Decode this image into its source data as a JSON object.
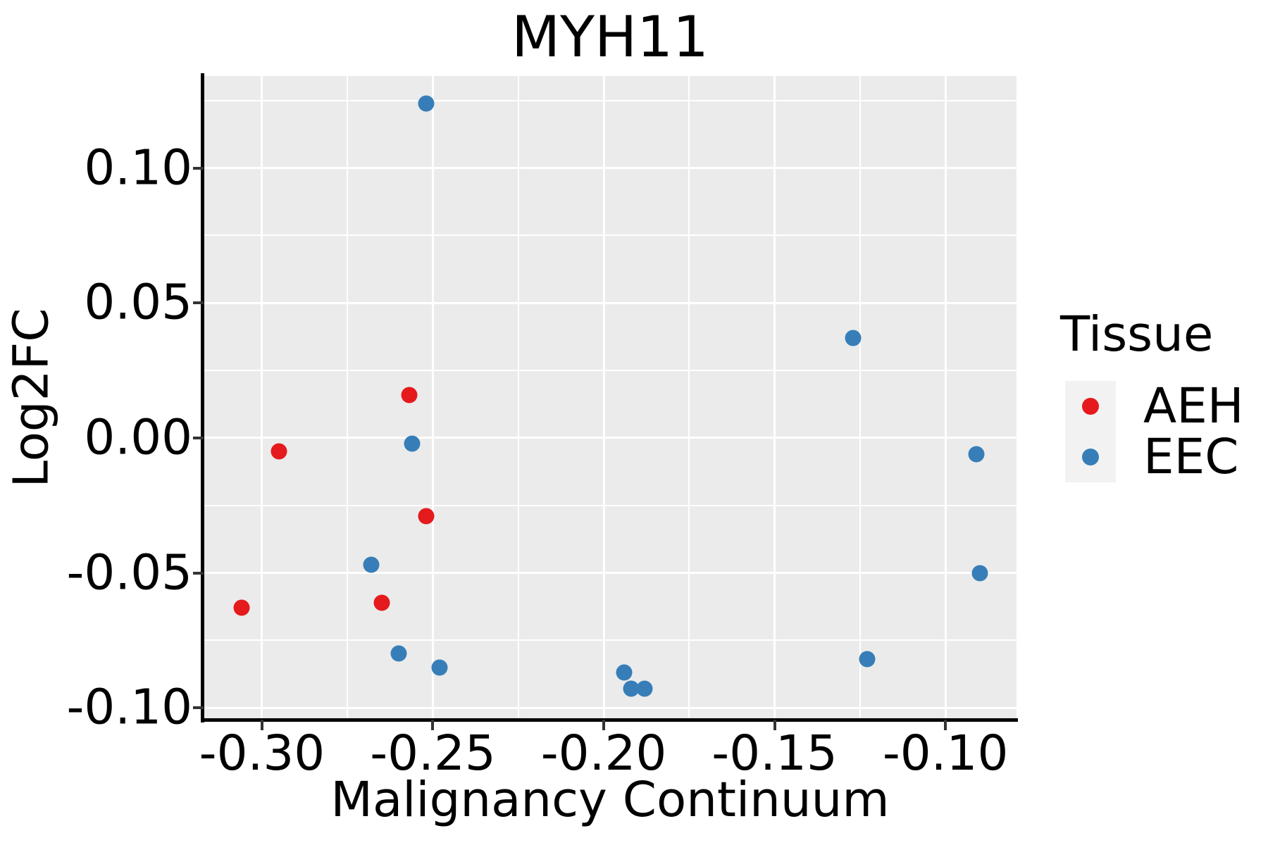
{
  "title": "MYH11",
  "axes": {
    "x": {
      "label": "Malignancy Continuum",
      "tick_labels": [
        "-0.30",
        "-0.25",
        "-0.20",
        "-0.15",
        "-0.10"
      ]
    },
    "y": {
      "label": "Log2FC",
      "tick_labels": [
        "0.10",
        "0.05",
        "0.00",
        "-0.05",
        "-0.10"
      ]
    }
  },
  "legend": {
    "title": "Tissue",
    "items": [
      {
        "label": "AEH",
        "color": "#e41a1c"
      },
      {
        "label": "EEC",
        "color": "#377eb8"
      }
    ]
  },
  "colors": {
    "plot_background": "#ebebeb",
    "grid": "#ffffff",
    "legend_key_background": "#f2f2f2",
    "aeh_red": "#e41a1c",
    "eec_blue": "#377eb8",
    "text": "#000000",
    "spine": "#000000",
    "tick": "#333333"
  },
  "chart_data": {
    "type": "scatter",
    "title": "MYH11",
    "xlabel": "Malignancy Continuum",
    "ylabel": "Log2FC",
    "xlim": [
      -0.3171,
      -0.0792
    ],
    "ylim": [
      -0.1044,
      0.1341
    ],
    "x_major_ticks": [
      -0.3,
      -0.25,
      -0.2,
      -0.15,
      -0.1
    ],
    "y_major_ticks": [
      0.1,
      0.05,
      0.0,
      -0.05,
      -0.1
    ],
    "minor_grid_step": 0.025,
    "grid": "major-and-minor-white-on-gray",
    "legend_position": "right",
    "series": [
      {
        "name": "AEH",
        "color": "#e41a1c",
        "points": [
          [
            -0.306,
            -0.063
          ],
          [
            -0.295,
            -0.005
          ],
          [
            -0.257,
            0.016
          ],
          [
            -0.252,
            -0.029
          ],
          [
            -0.265,
            -0.061
          ]
        ]
      },
      {
        "name": "EEC",
        "color": "#377eb8",
        "points": [
          [
            -0.252,
            0.124
          ],
          [
            -0.256,
            -0.002
          ],
          [
            -0.268,
            -0.047
          ],
          [
            -0.26,
            -0.08
          ],
          [
            -0.248,
            -0.085
          ],
          [
            -0.194,
            -0.087
          ],
          [
            -0.192,
            -0.093
          ],
          [
            -0.188,
            -0.093
          ],
          [
            -0.127,
            0.037
          ],
          [
            -0.123,
            -0.082
          ],
          [
            -0.091,
            -0.006
          ],
          [
            -0.09,
            -0.05
          ]
        ]
      }
    ]
  }
}
